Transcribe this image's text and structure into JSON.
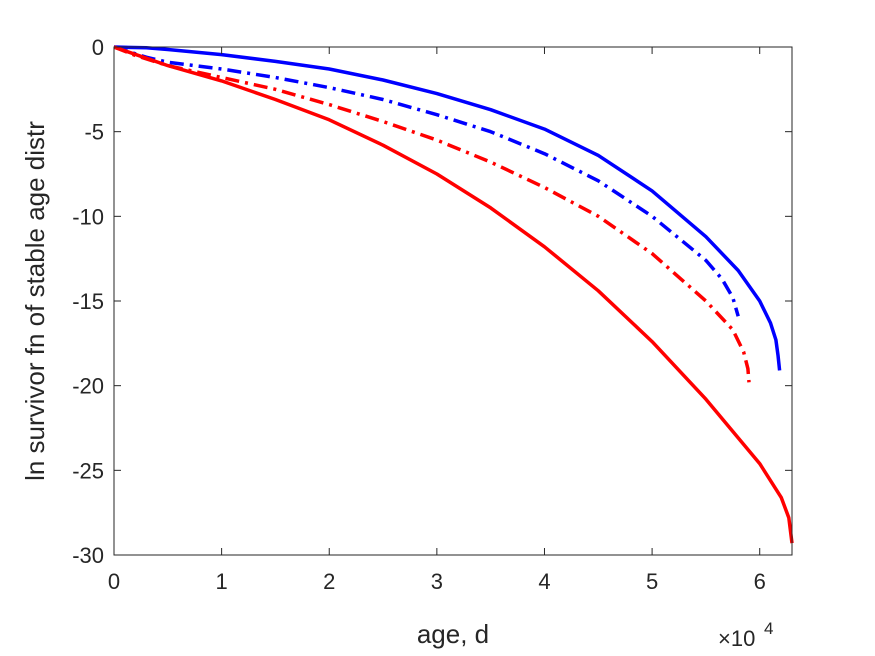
{
  "chart_data": {
    "type": "line",
    "title": "",
    "xlabel": "age, d",
    "ylabel": "ln survivor fn of stable age distr",
    "x_exponent_label": "×10",
    "x_exponent_power": "4",
    "xlim": [
      0,
      63000
    ],
    "ylim": [
      -30,
      0
    ],
    "xticks": [
      0,
      10000,
      20000,
      30000,
      40000,
      50000,
      60000
    ],
    "xtick_labels": [
      "0",
      "1",
      "2",
      "3",
      "4",
      "5",
      "6"
    ],
    "yticks": [
      0,
      -5,
      -10,
      -15,
      -20,
      -25,
      -30
    ],
    "ytick_labels": [
      "0",
      "-5",
      "-10",
      "-15",
      "-20",
      "-25",
      "-30"
    ],
    "grid": false,
    "legend": "none",
    "series": [
      {
        "color": "#0000ff",
        "style": "solid",
        "x": [
          0,
          3000,
          5000,
          10000,
          15000,
          20000,
          25000,
          30000,
          35000,
          40000,
          45000,
          50000,
          55000,
          58000,
          60000,
          61000,
          61500,
          61700,
          61850
        ],
        "y": [
          0,
          -0.05,
          -0.15,
          -0.45,
          -0.85,
          -1.3,
          -1.95,
          -2.75,
          -3.7,
          -4.85,
          -6.4,
          -8.5,
          -11.2,
          -13.2,
          -15.0,
          -16.3,
          -17.3,
          -18.2,
          -19.1
        ]
      },
      {
        "color": "#0000ff",
        "style": "dashdot",
        "x": [
          0,
          3000,
          5000,
          10000,
          15000,
          20000,
          25000,
          30000,
          35000,
          40000,
          45000,
          50000,
          55000,
          56500,
          57500,
          58000
        ],
        "y": [
          0,
          -0.6,
          -0.9,
          -1.3,
          -1.8,
          -2.4,
          -3.1,
          -4.0,
          -5.0,
          -6.3,
          -7.9,
          -10.0,
          -12.6,
          -13.7,
          -14.8,
          -15.9
        ]
      },
      {
        "color": "#ff0000",
        "style": "dashdot",
        "x": [
          0,
          2000,
          5000,
          10000,
          15000,
          20000,
          25000,
          30000,
          35000,
          40000,
          45000,
          50000,
          55000,
          57500,
          58500,
          58900,
          59000
        ],
        "y": [
          0,
          -0.5,
          -1.1,
          -1.8,
          -2.5,
          -3.4,
          -4.4,
          -5.5,
          -6.8,
          -8.3,
          -10.0,
          -12.2,
          -15.0,
          -16.7,
          -18.0,
          -19.0,
          -19.8
        ]
      },
      {
        "color": "#ff0000",
        "style": "solid",
        "x": [
          0,
          2500,
          5000,
          10000,
          15000,
          20000,
          25000,
          30000,
          35000,
          40000,
          45000,
          50000,
          55000,
          60000,
          62000,
          62700,
          63000
        ],
        "y": [
          0,
          -0.55,
          -1.1,
          -2.0,
          -3.1,
          -4.3,
          -5.8,
          -7.5,
          -9.5,
          -11.8,
          -14.4,
          -17.4,
          -20.8,
          -24.6,
          -26.6,
          -27.8,
          -29.3
        ]
      }
    ]
  }
}
